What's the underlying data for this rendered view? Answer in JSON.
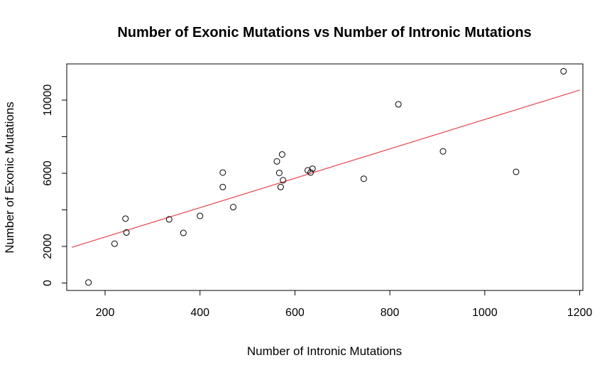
{
  "chart_data": {
    "type": "scatter",
    "title": "Number of Exonic Mutations vs Number of Intronic Mutations",
    "xlabel": "Number of Intronic Mutations",
    "ylabel": "Number of Exonic Mutations",
    "xlim": [
      130,
      1200
    ],
    "ylim": [
      0,
      11500
    ],
    "xticks": [
      200,
      400,
      600,
      800,
      1000,
      1200
    ],
    "yticks": [
      0,
      2000,
      6000,
      10000
    ],
    "grid": false,
    "legend": "none",
    "point_color": "#000000",
    "fit_line_color": "#e8434b",
    "fit_line": {
      "x": [
        130,
        1200
      ],
      "y": [
        1950,
        10550
      ]
    },
    "points": [
      {
        "x": 165,
        "y": 30
      },
      {
        "x": 220,
        "y": 2150
      },
      {
        "x": 243,
        "y": 3520
      },
      {
        "x": 245,
        "y": 2760
      },
      {
        "x": 335,
        "y": 3480
      },
      {
        "x": 365,
        "y": 2740
      },
      {
        "x": 400,
        "y": 3670
      },
      {
        "x": 448,
        "y": 6040
      },
      {
        "x": 448,
        "y": 5250
      },
      {
        "x": 470,
        "y": 4150
      },
      {
        "x": 562,
        "y": 6650
      },
      {
        "x": 567,
        "y": 6020
      },
      {
        "x": 570,
        "y": 5250
      },
      {
        "x": 573,
        "y": 7030
      },
      {
        "x": 575,
        "y": 5620
      },
      {
        "x": 627,
        "y": 6160
      },
      {
        "x": 633,
        "y": 6040
      },
      {
        "x": 637,
        "y": 6250
      },
      {
        "x": 745,
        "y": 5700
      },
      {
        "x": 818,
        "y": 9770
      },
      {
        "x": 912,
        "y": 7200
      },
      {
        "x": 1066,
        "y": 6080
      },
      {
        "x": 1166,
        "y": 11580
      }
    ]
  }
}
